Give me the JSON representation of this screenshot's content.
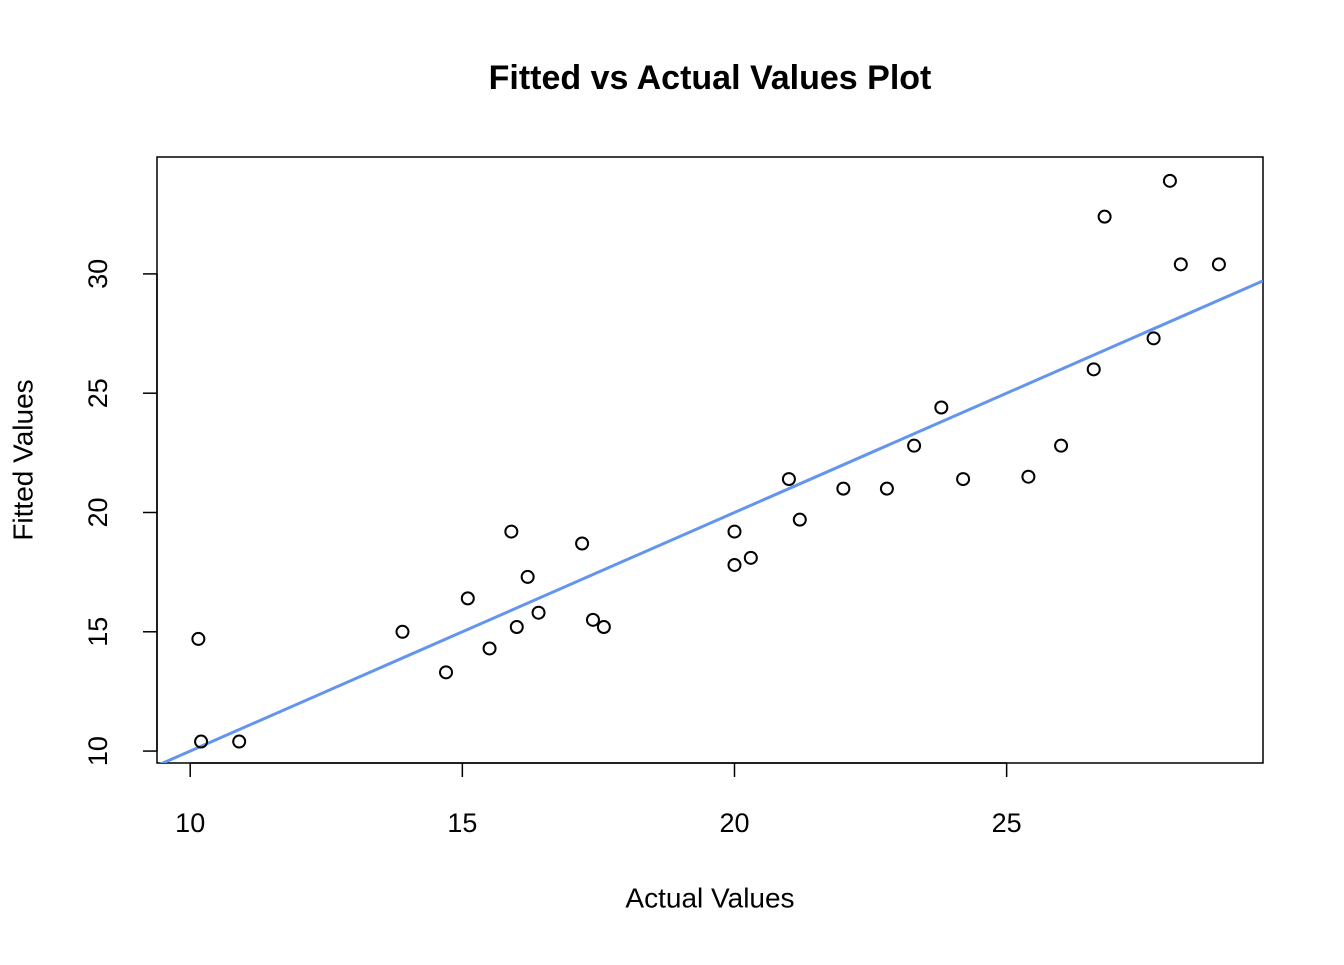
{
  "chart_data": {
    "type": "scatter",
    "title": "Fitted vs Actual Values Plot",
    "x_label": "Actual Values",
    "y_label": "Fitted Values",
    "x": [
      10.15,
      10.2,
      10.9,
      13.9,
      14.7,
      15.1,
      15.5,
      15.9,
      16.0,
      16.2,
      16.4,
      17.2,
      17.4,
      17.6,
      20.0,
      20.0,
      20.3,
      21.0,
      21.2,
      22.0,
      22.8,
      23.3,
      23.8,
      24.2,
      25.4,
      26.0,
      26.6,
      26.8,
      27.7,
      28.0,
      28.2,
      28.9
    ],
    "values": [
      14.7,
      10.4,
      10.4,
      15.0,
      13.3,
      16.4,
      14.3,
      19.2,
      15.2,
      17.3,
      15.8,
      18.7,
      15.5,
      15.2,
      19.2,
      17.8,
      18.1,
      21.4,
      19.7,
      21.0,
      21.0,
      22.8,
      24.4,
      21.4,
      21.5,
      22.8,
      26.0,
      32.4,
      27.3,
      33.9,
      30.4,
      30.4
    ],
    "color": "#000000",
    "reference_line": {
      "intercept": 0,
      "slope": 1,
      "color": "#6495ed"
    },
    "xlim": [
      9.39,
      29.71
    ],
    "ylim": [
      9.5,
      34.9
    ],
    "xticks": [
      10,
      15,
      20,
      25
    ],
    "yticks": [
      10,
      15,
      20,
      25,
      30
    ]
  }
}
